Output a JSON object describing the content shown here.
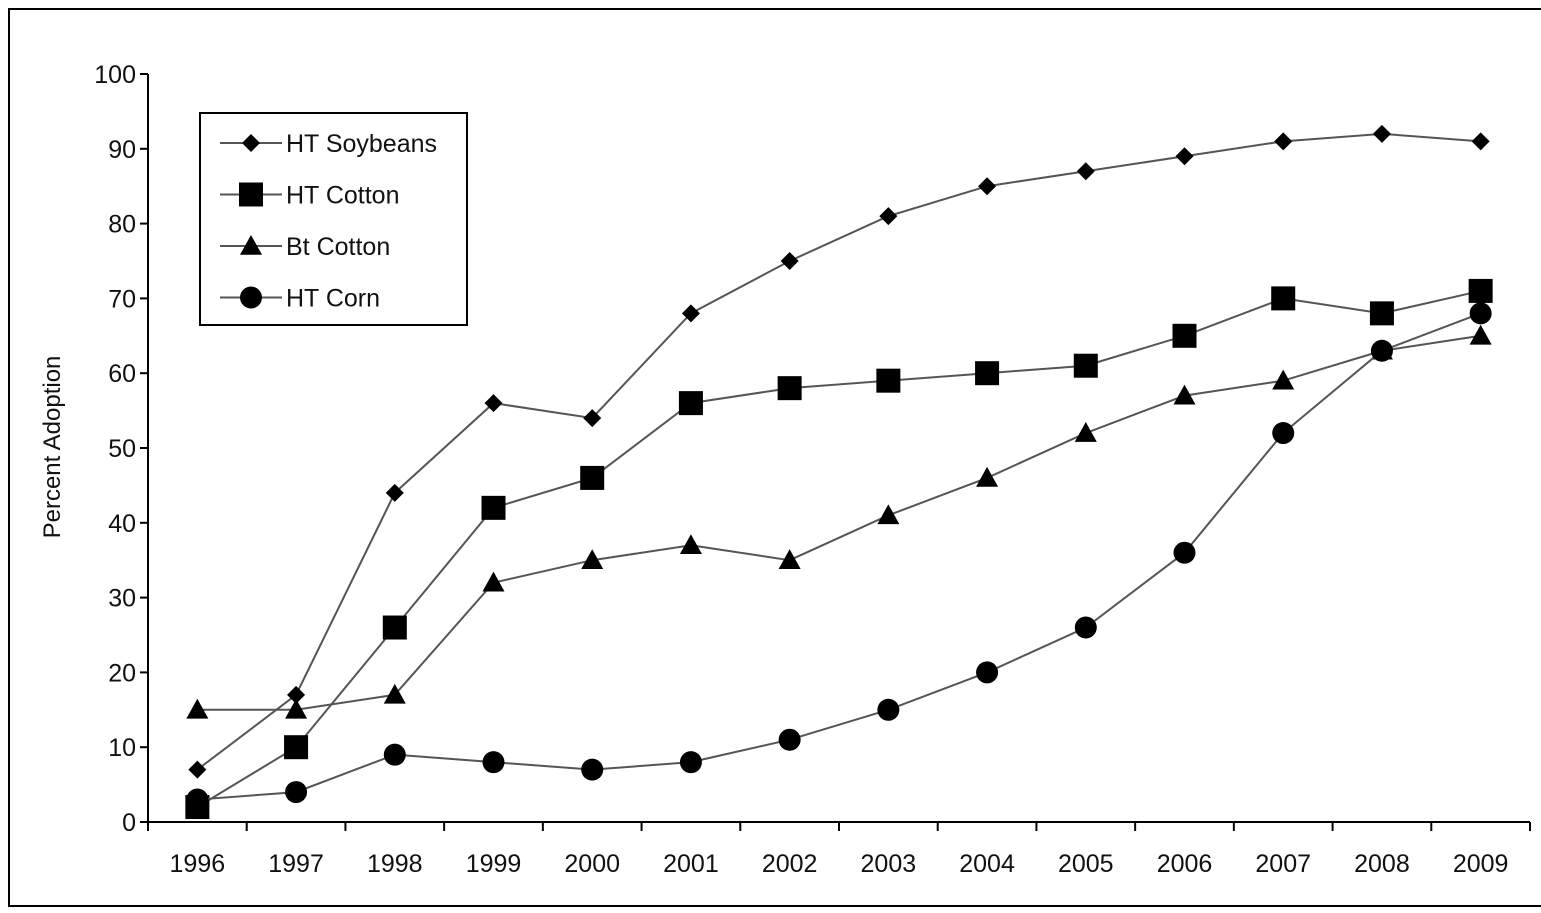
{
  "chart_data": {
    "type": "line",
    "title": "",
    "xlabel": "",
    "ylabel": "Percent Adoption",
    "ylim": [
      0,
      100
    ],
    "yticks": [
      0,
      10,
      20,
      30,
      40,
      50,
      60,
      70,
      80,
      90,
      100
    ],
    "categories": [
      "1996",
      "1997",
      "1998",
      "1999",
      "2000",
      "2001",
      "2002",
      "2003",
      "2004",
      "2005",
      "2006",
      "2007",
      "2008",
      "2009"
    ],
    "grid": false,
    "legend": "top-left, boxed",
    "series": [
      {
        "name": "HT Soybeans",
        "marker": "diamond",
        "values": [
          7,
          17,
          44,
          56,
          54,
          68,
          75,
          81,
          85,
          87,
          89,
          91,
          92,
          91
        ]
      },
      {
        "name": "HT Cotton",
        "marker": "square",
        "values": [
          2,
          10,
          26,
          42,
          46,
          56,
          58,
          59,
          60,
          61,
          65,
          70,
          68,
          71
        ]
      },
      {
        "name": "Bt Cotton",
        "marker": "triangle",
        "values": [
          15,
          15,
          17,
          32,
          35,
          37,
          35,
          41,
          46,
          52,
          57,
          59,
          63,
          65
        ]
      },
      {
        "name": "HT Corn",
        "marker": "circle",
        "values": [
          3,
          4,
          9,
          8,
          7,
          8,
          11,
          15,
          20,
          26,
          36,
          52,
          63,
          68
        ]
      }
    ],
    "colors": {
      "line": "#555555",
      "marker": "#000000",
      "frame": "#000000"
    }
  }
}
